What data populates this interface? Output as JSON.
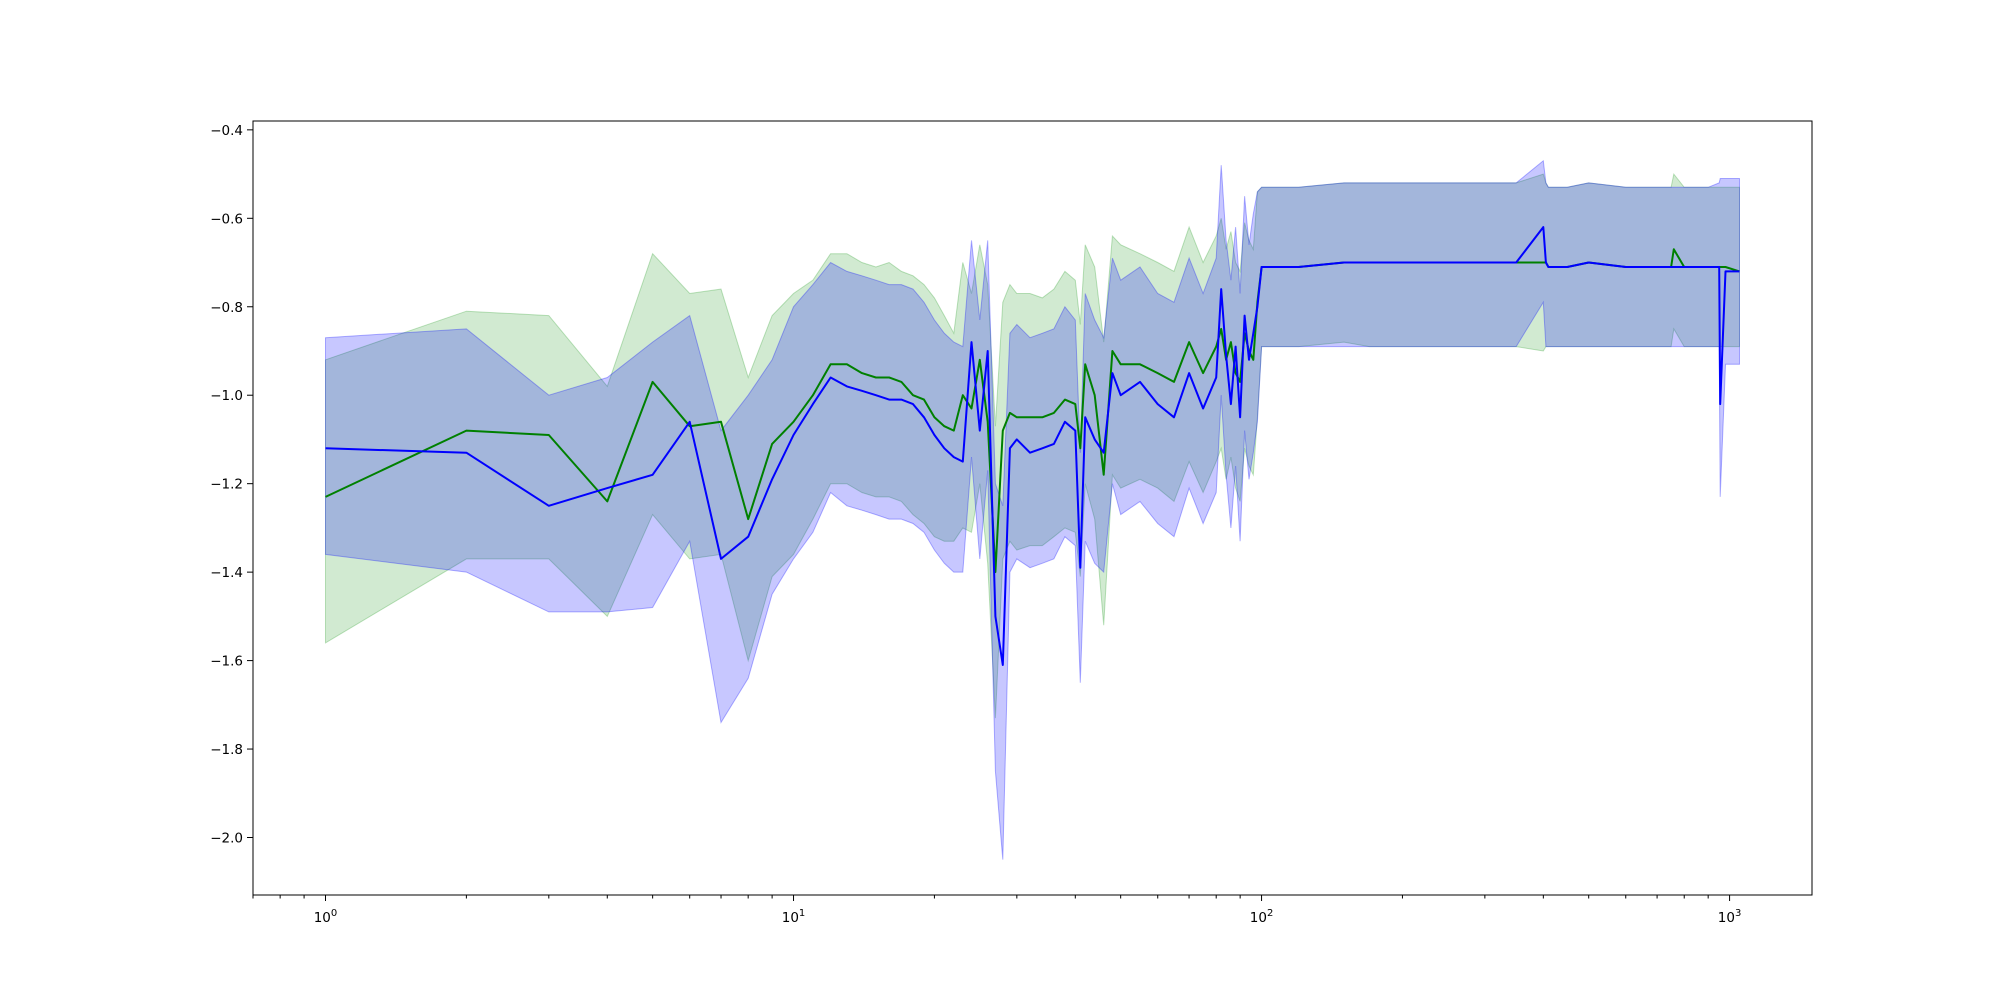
{
  "chart_data": {
    "type": "line",
    "title": "",
    "xlabel": "",
    "ylabel": "",
    "xscale": "log",
    "xlim": [
      0.7,
      1500
    ],
    "ylim": [
      -2.13,
      -0.38
    ],
    "grid": false,
    "legend": "none",
    "x_ticks": [
      {
        "base": "10",
        "exp": "0",
        "value": 1
      },
      {
        "base": "10",
        "exp": "1",
        "value": 10
      },
      {
        "base": "10",
        "exp": "2",
        "value": 100
      },
      {
        "base": "10",
        "exp": "3",
        "value": 1000
      }
    ],
    "y_ticks": [
      {
        "label": "−2.0",
        "value": -2.0
      },
      {
        "label": "−1.8",
        "value": -1.8
      },
      {
        "label": "−1.6",
        "value": -1.6
      },
      {
        "label": "−1.4",
        "value": -1.4
      },
      {
        "label": "−1.2",
        "value": -1.2
      },
      {
        "label": "−1.0",
        "value": -1.0
      },
      {
        "label": "−0.8",
        "value": -0.8
      },
      {
        "label": "−0.6",
        "value": -0.6
      },
      {
        "label": "−0.4",
        "value": -0.4
      }
    ],
    "series": [
      {
        "color": "#008000",
        "band_color": "#2ca02c",
        "x": [
          1,
          2,
          3,
          4,
          5,
          6,
          7,
          8,
          9,
          10,
          11,
          12,
          13,
          14,
          15,
          16,
          17,
          18,
          19,
          20,
          21,
          22,
          23,
          24,
          25,
          26,
          27,
          28,
          29,
          30,
          32,
          34,
          36,
          38,
          40,
          41,
          42,
          44,
          46,
          48,
          50,
          55,
          60,
          65,
          70,
          75,
          80,
          82,
          84,
          86,
          88,
          90,
          92,
          94,
          96,
          98,
          100,
          120,
          150,
          170,
          200,
          250,
          300,
          350,
          400,
          405,
          410,
          450,
          500,
          600,
          700,
          750,
          760,
          800,
          900,
          950,
          980,
          1050
        ],
        "values": [
          -1.23,
          -1.08,
          -1.09,
          -1.24,
          -0.97,
          -1.07,
          -1.06,
          -1.28,
          -1.11,
          -1.06,
          -1.0,
          -0.93,
          -0.93,
          -0.95,
          -0.96,
          -0.96,
          -0.97,
          -1.0,
          -1.01,
          -1.05,
          -1.07,
          -1.08,
          -1.0,
          -1.03,
          -0.92,
          -1.06,
          -1.4,
          -1.08,
          -1.04,
          -1.05,
          -1.05,
          -1.05,
          -1.04,
          -1.01,
          -1.02,
          -1.12,
          -0.93,
          -1.0,
          -1.18,
          -0.9,
          -0.93,
          -0.93,
          -0.95,
          -0.97,
          -0.88,
          -0.95,
          -0.89,
          -0.85,
          -0.92,
          -0.88,
          -0.95,
          -0.97,
          -0.86,
          -0.9,
          -0.92,
          -0.79,
          -0.71,
          -0.71,
          -0.7,
          -0.7,
          -0.7,
          -0.7,
          -0.7,
          -0.7,
          -0.7,
          -0.7,
          -0.71,
          -0.71,
          -0.7,
          -0.71,
          -0.71,
          -0.71,
          -0.67,
          -0.71,
          -0.71,
          -0.71,
          -0.71,
          -0.72
        ],
        "upper": [
          -0.92,
          -0.81,
          -0.82,
          -0.98,
          -0.68,
          -0.77,
          -0.76,
          -0.96,
          -0.82,
          -0.77,
          -0.74,
          -0.68,
          -0.68,
          -0.7,
          -0.71,
          -0.7,
          -0.72,
          -0.73,
          -0.75,
          -0.78,
          -0.82,
          -0.86,
          -0.7,
          -0.77,
          -0.66,
          -0.75,
          -1.07,
          -0.79,
          -0.75,
          -0.77,
          -0.77,
          -0.78,
          -0.76,
          -0.72,
          -0.74,
          -0.84,
          -0.66,
          -0.71,
          -0.88,
          -0.64,
          -0.66,
          -0.68,
          -0.7,
          -0.72,
          -0.62,
          -0.7,
          -0.64,
          -0.6,
          -0.67,
          -0.63,
          -0.7,
          -0.72,
          -0.61,
          -0.65,
          -0.67,
          -0.54,
          -0.53,
          -0.53,
          -0.52,
          -0.52,
          -0.52,
          -0.52,
          -0.52,
          -0.52,
          -0.5,
          -0.52,
          -0.53,
          -0.53,
          -0.52,
          -0.53,
          -0.53,
          -0.53,
          -0.5,
          -0.53,
          -0.53,
          -0.53,
          -0.53,
          -0.53
        ],
        "lower": [
          -1.56,
          -1.37,
          -1.37,
          -1.5,
          -1.27,
          -1.37,
          -1.36,
          -1.6,
          -1.41,
          -1.36,
          -1.28,
          -1.2,
          -1.2,
          -1.22,
          -1.23,
          -1.23,
          -1.24,
          -1.27,
          -1.29,
          -1.32,
          -1.33,
          -1.33,
          -1.3,
          -1.31,
          -1.2,
          -1.38,
          -1.73,
          -1.37,
          -1.33,
          -1.35,
          -1.34,
          -1.34,
          -1.32,
          -1.3,
          -1.31,
          -1.41,
          -1.2,
          -1.28,
          -1.52,
          -1.18,
          -1.21,
          -1.19,
          -1.21,
          -1.24,
          -1.15,
          -1.22,
          -1.15,
          -1.12,
          -1.19,
          -1.14,
          -1.21,
          -1.24,
          -1.12,
          -1.16,
          -1.18,
          -1.05,
          -0.89,
          -0.89,
          -0.88,
          -0.89,
          -0.89,
          -0.89,
          -0.89,
          -0.89,
          -0.9,
          -0.89,
          -0.89,
          -0.89,
          -0.89,
          -0.89,
          -0.89,
          -0.89,
          -0.85,
          -0.89,
          -0.89,
          -0.89,
          -0.89,
          -0.89
        ]
      },
      {
        "color": "#0000ff",
        "band_color": "#0000ff",
        "x": [
          1,
          2,
          3,
          4,
          5,
          6,
          7,
          8,
          9,
          10,
          11,
          12,
          13,
          14,
          15,
          16,
          17,
          18,
          19,
          20,
          21,
          22,
          23,
          24,
          25,
          26,
          27,
          28,
          29,
          30,
          32,
          34,
          36,
          38,
          40,
          41,
          42,
          44,
          46,
          48,
          50,
          55,
          60,
          65,
          70,
          75,
          80,
          82,
          84,
          86,
          88,
          90,
          92,
          94,
          96,
          98,
          100,
          120,
          150,
          170,
          200,
          250,
          300,
          350,
          400,
          405,
          410,
          450,
          500,
          600,
          700,
          800,
          900,
          950,
          955,
          980,
          1050
        ],
        "values": [
          -1.12,
          -1.13,
          -1.25,
          -1.21,
          -1.18,
          -1.06,
          -1.37,
          -1.32,
          -1.19,
          -1.09,
          -1.02,
          -0.96,
          -0.98,
          -0.99,
          -1.0,
          -1.01,
          -1.01,
          -1.02,
          -1.05,
          -1.09,
          -1.12,
          -1.14,
          -1.15,
          -0.88,
          -1.08,
          -0.9,
          -1.5,
          -1.61,
          -1.12,
          -1.1,
          -1.13,
          -1.12,
          -1.11,
          -1.06,
          -1.08,
          -1.39,
          -1.05,
          -1.1,
          -1.13,
          -0.95,
          -1.0,
          -0.97,
          -1.02,
          -1.05,
          -0.95,
          -1.03,
          -0.96,
          -0.76,
          -0.91,
          -1.02,
          -0.89,
          -1.05,
          -0.82,
          -0.92,
          -0.86,
          -0.8,
          -0.71,
          -0.71,
          -0.7,
          -0.7,
          -0.7,
          -0.7,
          -0.7,
          -0.7,
          -0.62,
          -0.7,
          -0.71,
          -0.71,
          -0.7,
          -0.71,
          -0.71,
          -0.71,
          -0.71,
          -0.71,
          -1.02,
          -0.72,
          -0.72
        ],
        "upper": [
          -0.87,
          -0.85,
          -1.0,
          -0.96,
          -0.88,
          -0.82,
          -1.08,
          -1.0,
          -0.92,
          -0.8,
          -0.75,
          -0.7,
          -0.72,
          -0.73,
          -0.74,
          -0.75,
          -0.75,
          -0.76,
          -0.79,
          -0.83,
          -0.86,
          -0.88,
          -0.89,
          -0.65,
          -0.83,
          -0.65,
          -1.2,
          -1.25,
          -0.86,
          -0.84,
          -0.87,
          -0.86,
          -0.85,
          -0.8,
          -0.83,
          -1.13,
          -0.77,
          -0.83,
          -0.87,
          -0.69,
          -0.74,
          -0.71,
          -0.77,
          -0.79,
          -0.69,
          -0.77,
          -0.69,
          -0.48,
          -0.65,
          -0.74,
          -0.62,
          -0.77,
          -0.55,
          -0.66,
          -0.59,
          -0.54,
          -0.53,
          -0.53,
          -0.52,
          -0.52,
          -0.52,
          -0.52,
          -0.52,
          -0.52,
          -0.47,
          -0.52,
          -0.53,
          -0.53,
          -0.52,
          -0.53,
          -0.53,
          -0.53,
          -0.53,
          -0.52,
          -0.51,
          -0.51,
          -0.51
        ],
        "lower": [
          -1.36,
          -1.4,
          -1.49,
          -1.49,
          -1.48,
          -1.33,
          -1.74,
          -1.64,
          -1.45,
          -1.37,
          -1.31,
          -1.22,
          -1.25,
          -1.26,
          -1.27,
          -1.28,
          -1.28,
          -1.29,
          -1.31,
          -1.35,
          -1.38,
          -1.4,
          -1.4,
          -1.14,
          -1.37,
          -1.17,
          -1.85,
          -2.05,
          -1.4,
          -1.37,
          -1.39,
          -1.38,
          -1.37,
          -1.32,
          -1.34,
          -1.65,
          -1.33,
          -1.38,
          -1.4,
          -1.2,
          -1.27,
          -1.24,
          -1.29,
          -1.32,
          -1.21,
          -1.29,
          -1.22,
          -1.0,
          -1.18,
          -1.3,
          -1.16,
          -1.33,
          -1.08,
          -1.19,
          -1.13,
          -1.06,
          -0.89,
          -0.89,
          -0.89,
          -0.89,
          -0.89,
          -0.89,
          -0.89,
          -0.89,
          -0.79,
          -0.89,
          -0.89,
          -0.89,
          -0.89,
          -0.89,
          -0.89,
          -0.89,
          -0.89,
          -0.89,
          -1.23,
          -0.93,
          -0.93
        ]
      }
    ]
  }
}
